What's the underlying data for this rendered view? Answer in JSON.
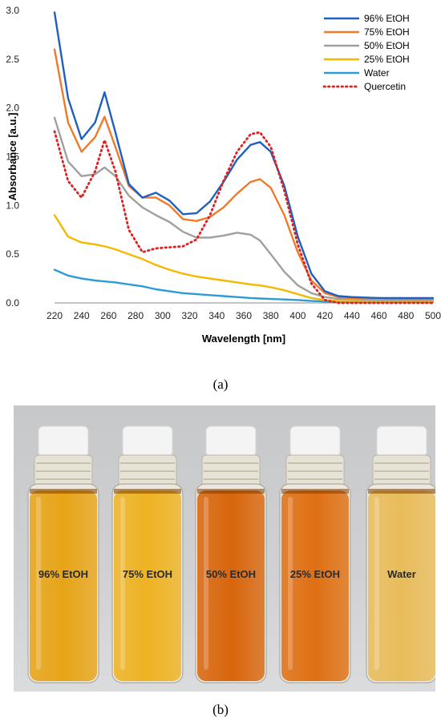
{
  "figure": {
    "caption_a": "(a)",
    "caption_b": "(b)"
  },
  "chart_data": {
    "type": "line",
    "xlabel": "Wavelength [nm]",
    "ylabel": "Absorbance [a.u.]",
    "xlim": [
      220,
      500
    ],
    "ylim": [
      0,
      3.0
    ],
    "x_ticks": [
      220,
      240,
      260,
      280,
      300,
      320,
      340,
      360,
      380,
      400,
      420,
      440,
      460,
      480,
      500
    ],
    "y_ticks": [
      0.0,
      0.5,
      1.0,
      1.5,
      2.0,
      2.5,
      3.0
    ],
    "y_tick_labels": [
      "0.0",
      "0.5",
      "1.0",
      "1.5",
      "2.0",
      "2.5",
      "3.0"
    ],
    "grid": false,
    "legend_position": "top-right",
    "x": [
      220,
      230,
      240,
      250,
      257,
      265,
      275,
      285,
      295,
      305,
      315,
      325,
      335,
      345,
      355,
      365,
      372,
      380,
      390,
      400,
      410,
      420,
      430,
      440,
      460,
      480,
      500
    ],
    "series": [
      {
        "name": "96% EtOH",
        "color": "#1f5fbf",
        "dash": "solid",
        "values": [
          2.98,
          2.1,
          1.68,
          1.85,
          2.16,
          1.75,
          1.22,
          1.08,
          1.13,
          1.05,
          0.91,
          0.92,
          1.04,
          1.24,
          1.47,
          1.62,
          1.65,
          1.55,
          1.2,
          0.68,
          0.3,
          0.12,
          0.07,
          0.06,
          0.05,
          0.05,
          0.05
        ]
      },
      {
        "name": "75% EtOH",
        "color": "#f07a2a",
        "dash": "solid",
        "values": [
          2.6,
          1.85,
          1.55,
          1.7,
          1.91,
          1.6,
          1.2,
          1.08,
          1.08,
          1.0,
          0.86,
          0.84,
          0.88,
          0.98,
          1.12,
          1.24,
          1.27,
          1.18,
          0.9,
          0.52,
          0.23,
          0.1,
          0.06,
          0.05,
          0.05,
          0.04,
          0.04
        ]
      },
      {
        "name": "50% EtOH",
        "color": "#a0a0a0",
        "dash": "solid",
        "values": [
          1.9,
          1.45,
          1.3,
          1.32,
          1.39,
          1.3,
          1.1,
          0.98,
          0.9,
          0.83,
          0.73,
          0.67,
          0.67,
          0.69,
          0.72,
          0.7,
          0.64,
          0.5,
          0.32,
          0.18,
          0.1,
          0.06,
          0.04,
          0.04,
          0.03,
          0.03,
          0.03
        ]
      },
      {
        "name": "25% EtOH",
        "color": "#f5b800",
        "dash": "solid",
        "values": [
          0.9,
          0.68,
          0.62,
          0.6,
          0.58,
          0.55,
          0.5,
          0.45,
          0.39,
          0.34,
          0.3,
          0.27,
          0.25,
          0.23,
          0.21,
          0.19,
          0.18,
          0.16,
          0.13,
          0.09,
          0.05,
          0.03,
          0.02,
          0.02,
          0.02,
          0.02,
          0.02
        ]
      },
      {
        "name": "Water",
        "color": "#2e9bd6",
        "dash": "solid",
        "values": [
          0.34,
          0.28,
          0.25,
          0.23,
          0.22,
          0.21,
          0.19,
          0.17,
          0.14,
          0.12,
          0.1,
          0.09,
          0.08,
          0.07,
          0.06,
          0.05,
          0.045,
          0.04,
          0.035,
          0.03,
          0.02,
          0.015,
          0.01,
          0.01,
          0.01,
          0.01,
          0.01
        ]
      },
      {
        "name": "Quercetin",
        "color": "#e02020",
        "dash": "dotted",
        "values": [
          1.76,
          1.25,
          1.08,
          1.35,
          1.67,
          1.35,
          0.75,
          0.52,
          0.56,
          0.57,
          0.58,
          0.65,
          0.9,
          1.25,
          1.55,
          1.73,
          1.75,
          1.6,
          1.15,
          0.6,
          0.2,
          0.03,
          0.0,
          0.0,
          0.0,
          0.0,
          0.0
        ]
      }
    ]
  },
  "photo": {
    "background_color": "#cfd1d3",
    "vials": [
      {
        "label": "96% EtOH",
        "liquid_color": "#e7a417"
      },
      {
        "label": "75% EtOH",
        "liquid_color": "#eeb322"
      },
      {
        "label": "50% EtOH",
        "liquid_color": "#d8650c"
      },
      {
        "label": "25% EtOH",
        "liquid_color": "#df6f12"
      },
      {
        "label": "Water",
        "liquid_color": "#e9bc5a"
      }
    ]
  }
}
